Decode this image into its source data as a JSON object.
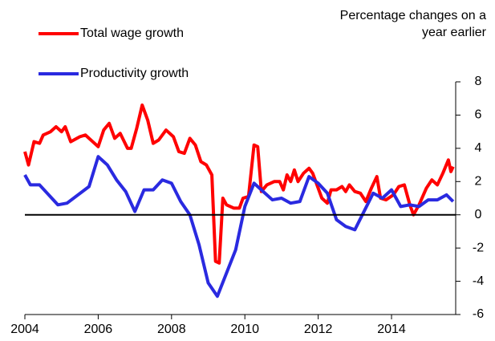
{
  "chart_data": {
    "type": "line",
    "annotation": [
      "Percentage changes on a",
      "year earlier"
    ],
    "xlim": [
      2004,
      2015.75
    ],
    "xticks": [
      2004,
      2006,
      2008,
      2010,
      2012,
      2014
    ],
    "ylim": [
      -6,
      8
    ],
    "yticks": [
      8,
      6,
      4,
      2,
      0,
      -2,
      -4,
      -6
    ],
    "y_axis_side": "right",
    "zero_line": true,
    "legend": "top-left",
    "series": [
      {
        "name": "Total wage growth",
        "color": "#ff0000",
        "x": [
          2004.0,
          2004.1,
          2004.25,
          2004.4,
          2004.5,
          2004.7,
          2004.85,
          2005.0,
          2005.1,
          2005.25,
          2005.5,
          2005.65,
          2005.85,
          2006.0,
          2006.15,
          2006.3,
          2006.45,
          2006.6,
          2006.8,
          2006.9,
          2007.05,
          2007.2,
          2007.35,
          2007.5,
          2007.65,
          2007.85,
          2008.05,
          2008.2,
          2008.35,
          2008.5,
          2008.65,
          2008.8,
          2008.95,
          2009.1,
          2009.2,
          2009.3,
          2009.4,
          2009.5,
          2009.7,
          2009.85,
          2009.95,
          2010.1,
          2010.25,
          2010.35,
          2010.45,
          2010.6,
          2010.8,
          2010.95,
          2011.05,
          2011.15,
          2011.25,
          2011.35,
          2011.45,
          2011.6,
          2011.75,
          2011.85,
          2012.0,
          2012.1,
          2012.25,
          2012.35,
          2012.5,
          2012.65,
          2012.75,
          2012.85,
          2013.0,
          2013.15,
          2013.3,
          2013.45,
          2013.6,
          2013.7,
          2013.85,
          2014.05,
          2014.2,
          2014.35,
          2014.5,
          2014.6,
          2014.75,
          2014.95,
          2015.1,
          2015.25,
          2015.4,
          2015.55,
          2015.62,
          2015.68
        ],
        "values": [
          3.8,
          3.0,
          4.4,
          4.3,
          4.8,
          5.0,
          5.3,
          5.0,
          5.3,
          4.4,
          4.7,
          4.8,
          4.4,
          4.1,
          5.1,
          5.5,
          4.6,
          4.9,
          4.0,
          4.0,
          5.2,
          6.6,
          5.7,
          4.3,
          4.5,
          5.1,
          4.7,
          3.8,
          3.7,
          4.6,
          4.2,
          3.2,
          3.0,
          2.4,
          -2.8,
          -2.9,
          1.0,
          0.6,
          0.4,
          0.4,
          1.0,
          1.1,
          4.2,
          4.1,
          1.4,
          1.8,
          2.0,
          2.0,
          1.5,
          2.4,
          2.0,
          2.7,
          2.0,
          2.5,
          2.8,
          2.5,
          1.6,
          1.0,
          0.7,
          1.5,
          1.5,
          1.7,
          1.4,
          1.8,
          1.4,
          1.3,
          0.8,
          1.6,
          2.3,
          1.0,
          0.9,
          1.2,
          1.7,
          1.8,
          0.6,
          0.0,
          0.6,
          1.6,
          2.1,
          1.8,
          2.5,
          3.3,
          2.6,
          2.9
        ]
      },
      {
        "name": "Productivity growth",
        "color": "#2a2ae0",
        "x": [
          2004.0,
          2004.15,
          2004.4,
          2004.9,
          2005.15,
          2005.75,
          2006.0,
          2006.25,
          2006.5,
          2006.75,
          2007.0,
          2007.25,
          2007.5,
          2007.75,
          2008.0,
          2008.25,
          2008.5,
          2008.75,
          2009.0,
          2009.25,
          2009.5,
          2009.75,
          2010.0,
          2010.25,
          2010.5,
          2010.75,
          2011.0,
          2011.25,
          2011.5,
          2011.75,
          2012.0,
          2012.25,
          2012.5,
          2012.75,
          2013.0,
          2013.25,
          2013.5,
          2013.75,
          2014.0,
          2014.25,
          2014.5,
          2014.75,
          2015.0,
          2015.25,
          2015.5,
          2015.68
        ],
        "values": [
          2.4,
          1.8,
          1.8,
          0.6,
          0.7,
          1.7,
          3.5,
          3.0,
          2.1,
          1.4,
          0.2,
          1.5,
          1.5,
          2.1,
          1.9,
          0.8,
          0.0,
          -1.8,
          -4.1,
          -4.9,
          -3.5,
          -2.1,
          0.5,
          1.9,
          1.4,
          0.9,
          1.0,
          0.7,
          0.8,
          2.3,
          1.9,
          1.3,
          -0.3,
          -0.7,
          -0.9,
          0.2,
          1.3,
          1.0,
          1.5,
          0.5,
          0.6,
          0.5,
          0.9,
          0.9,
          1.2,
          0.8
        ]
      }
    ]
  }
}
